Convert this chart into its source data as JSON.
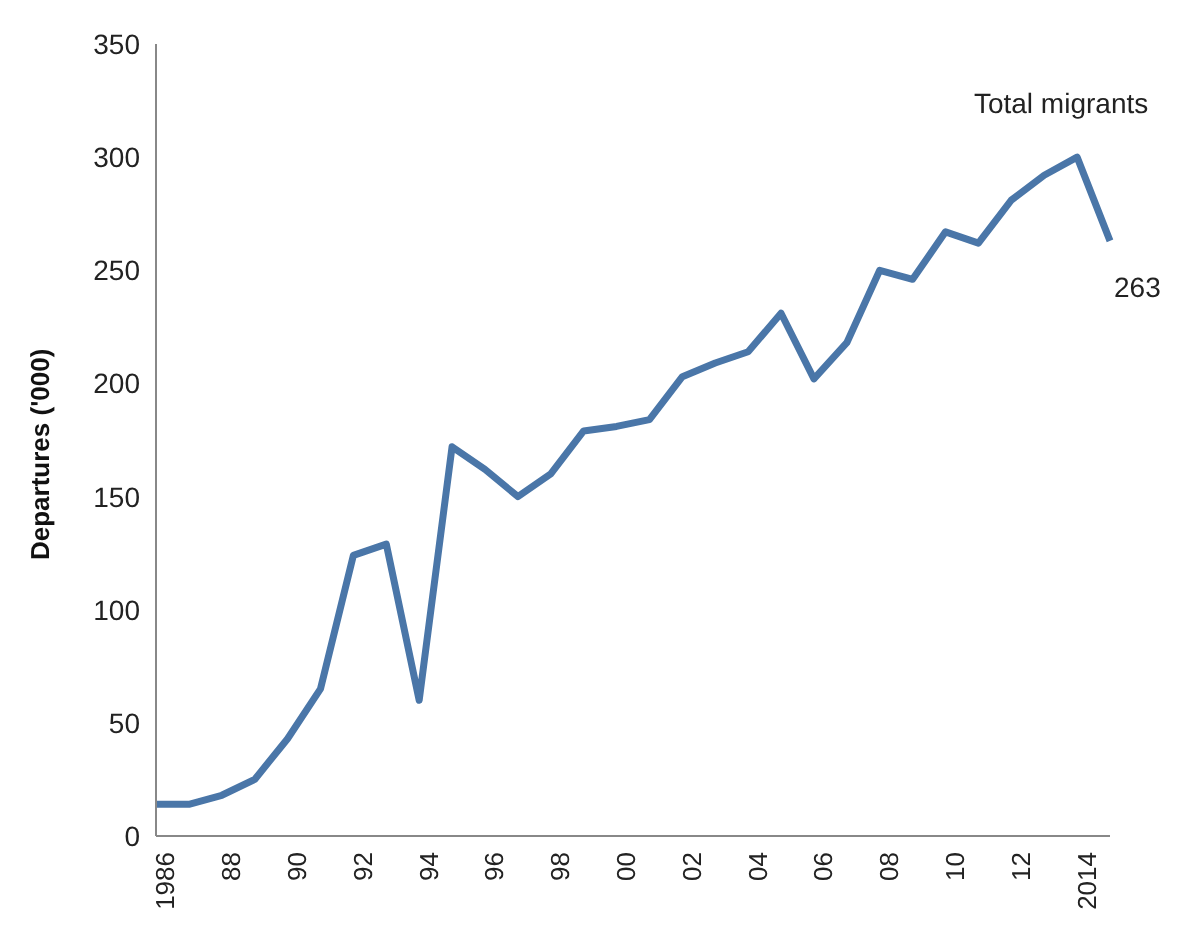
{
  "chart_data": {
    "type": "line",
    "ylabel": "Departures ('000)",
    "categories": [
      "1986",
      null,
      "88",
      null,
      "90",
      null,
      "92",
      null,
      "94",
      null,
      "96",
      null,
      "98",
      null,
      "00",
      null,
      "02",
      null,
      "04",
      null,
      "06",
      null,
      "08",
      null,
      "10",
      null,
      "12",
      null,
      "2014",
      null
    ],
    "series": [
      {
        "name": "Total migrants",
        "color": "#4a76a8",
        "values": [
          14,
          14,
          18,
          25,
          43,
          65,
          124,
          129,
          60,
          172,
          162,
          150,
          160,
          179,
          181,
          184,
          203,
          209,
          214,
          231,
          202,
          218,
          250,
          246,
          267,
          262,
          281,
          292,
          300,
          263
        ],
        "value_labels": [
          null,
          null,
          null,
          null,
          null,
          null,
          null,
          null,
          null,
          null,
          null,
          null,
          null,
          null,
          null,
          null,
          null,
          null,
          null,
          null,
          null,
          null,
          null,
          null,
          null,
          null,
          null,
          null,
          null,
          "263"
        ]
      }
    ],
    "ylim": [
      0,
      350
    ],
    "yticks": [
      0,
      50,
      100,
      150,
      200,
      250,
      300,
      350
    ],
    "grid": false,
    "legend": false,
    "marker": "none",
    "line_style": "solid"
  }
}
